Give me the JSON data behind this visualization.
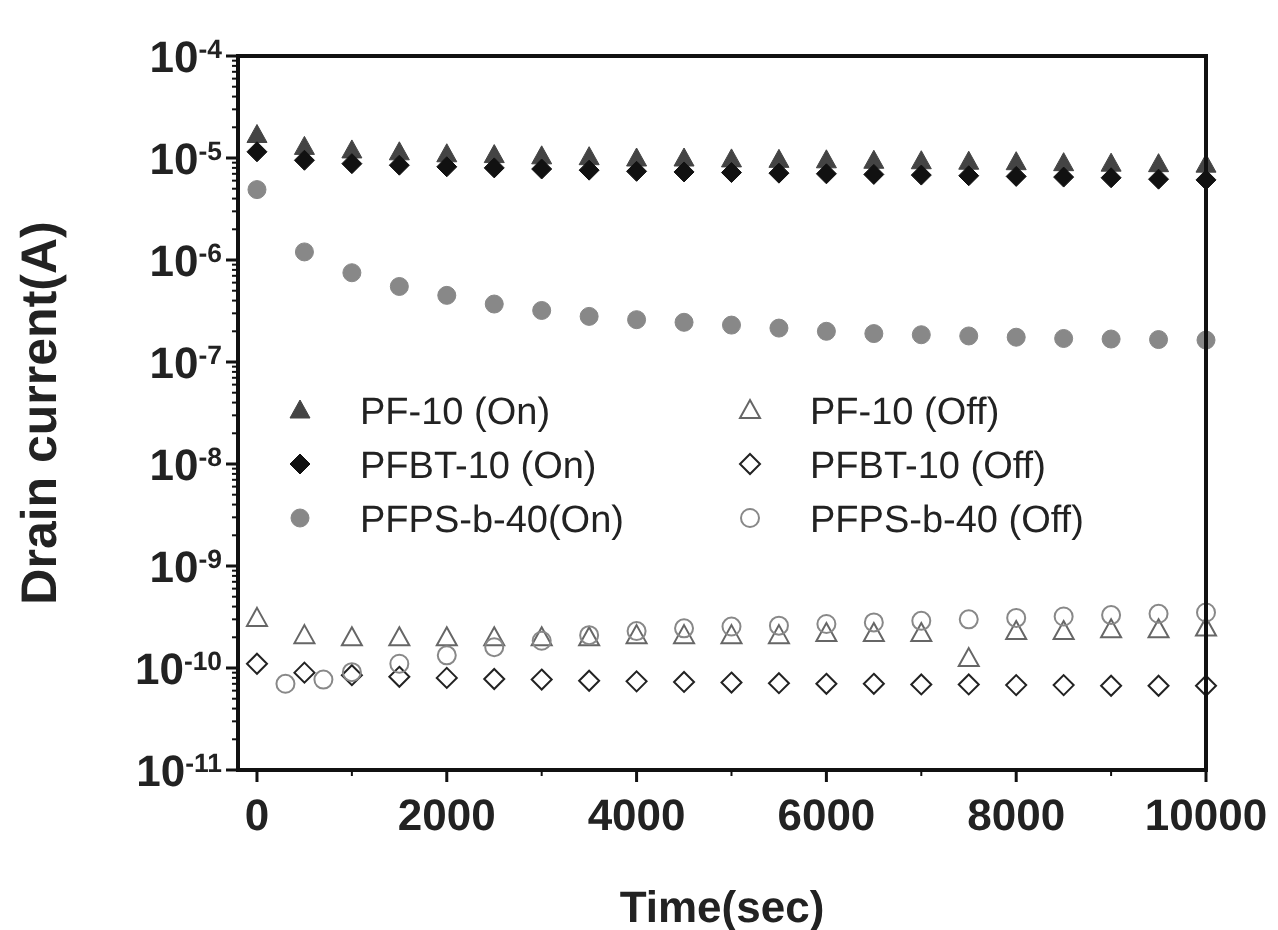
{
  "chart_data": {
    "type": "scatter",
    "xlabel": "Time(sec)",
    "ylabel": "Drain current(A)",
    "log": "y",
    "xlim": [
      -200,
      10000
    ],
    "ylim": [
      1e-11,
      0.0001
    ],
    "xticks": [
      0,
      2000,
      4000,
      6000,
      8000,
      10000
    ],
    "yticks": [
      {
        "value": 1e-11,
        "label": "10$^{-11}$"
      },
      {
        "value": 1e-10,
        "label": "10$^{-10}$"
      },
      {
        "value": 1e-09,
        "label": "10$^{-9}$"
      },
      {
        "value": 1e-08,
        "label": "10$^{-8}$"
      },
      {
        "value": 1e-07,
        "label": "10$^{-7}$"
      },
      {
        "value": 1e-06,
        "label": "10$^{-6}$"
      },
      {
        "value": 1e-05,
        "label": "10$^{-5}$"
      },
      {
        "value": 0.0001,
        "label": "10$^{-4}$"
      }
    ],
    "legend": "left",
    "x": [
      0,
      500,
      1000,
      1500,
      2000,
      2500,
      3000,
      3500,
      4000,
      4500,
      5000,
      5500,
      6000,
      6500,
      7000,
      7500,
      8000,
      8500,
      9000,
      9500,
      10000
    ],
    "series": [
      {
        "name": "PF-10 (On)",
        "color": "#444444",
        "marker": "triangle",
        "values": [
          1.7e-05,
          1.3e-05,
          1.2e-05,
          1.15e-05,
          1.1e-05,
          1.08e-05,
          1.05e-05,
          1.03e-05,
          1e-05,
          1e-05,
          9.8e-06,
          9.7e-06,
          9.6e-06,
          9.5e-06,
          9.4e-06,
          9.3e-06,
          9.2e-06,
          9e-06,
          8.9e-06,
          8.8e-06,
          8.7e-06
        ]
      },
      {
        "name": "PFBT-10 (On)",
        "color": "#111111",
        "marker": "diamond",
        "values": [
          1.15e-05,
          9.5e-06,
          8.8e-06,
          8.5e-06,
          8.2e-06,
          8e-06,
          7.8e-06,
          7.6e-06,
          7.4e-06,
          7.3e-06,
          7.2e-06,
          7.1e-06,
          7e-06,
          6.9e-06,
          6.8e-06,
          6.7e-06,
          6.6e-06,
          6.5e-06,
          6.4e-06,
          6.2e-06,
          6.1e-06
        ]
      },
      {
        "name": "PFPS-b-40(On)",
        "color": "#888888",
        "marker": "circle",
        "values": [
          4.9e-06,
          1.2e-06,
          7.5e-07,
          5.5e-07,
          4.5e-07,
          3.7e-07,
          3.2e-07,
          2.8e-07,
          2.6e-07,
          2.45e-07,
          2.3e-07,
          2.15e-07,
          2e-07,
          1.9e-07,
          1.85e-07,
          1.8e-07,
          1.75e-07,
          1.7e-07,
          1.68e-07,
          1.66e-07,
          1.64e-07
        ]
      },
      {
        "name": "PF-10 (Off)",
        "color": "#666666",
        "marker": "triangle",
        "values": [
          3.1e-10,
          2.1e-10,
          2e-10,
          2e-10,
          2e-10,
          2e-10,
          2e-10,
          2e-10,
          2.1e-10,
          2.1e-10,
          2.1e-10,
          2.1e-10,
          2.2e-10,
          2.2e-10,
          2.2e-10,
          1.25e-10,
          2.3e-10,
          2.3e-10,
          2.4e-10,
          2.4e-10,
          2.5e-10
        ]
      },
      {
        "name": "PFBT-10 (Off)",
        "color": "#222222",
        "marker": "diamond",
        "values": [
          1.1e-10,
          9e-11,
          8.5e-11,
          8.2e-11,
          8e-11,
          7.8e-11,
          7.7e-11,
          7.5e-11,
          7.4e-11,
          7.3e-11,
          7.2e-11,
          7.1e-11,
          7e-11,
          7e-11,
          6.9e-11,
          6.9e-11,
          6.8e-11,
          6.8e-11,
          6.7e-11,
          6.7e-11,
          6.7e-11
        ]
      },
      {
        "name": "PFPS-b-40 (Off)",
        "color": "#888888",
        "marker": "circle",
        "x": [
          300,
          700,
          1000,
          1500,
          2000,
          2500,
          3000,
          3500,
          4000,
          4500,
          5000,
          5500,
          6000,
          6500,
          7000,
          7500,
          8000,
          8500,
          9000,
          9500,
          10000
        ],
        "values": [
          7e-11,
          7.7e-11,
          9.1e-11,
          1.1e-10,
          1.33e-10,
          1.6e-10,
          1.85e-10,
          2.1e-10,
          2.3e-10,
          2.45e-10,
          2.55e-10,
          2.6e-10,
          2.7e-10,
          2.8e-10,
          2.9e-10,
          3e-10,
          3.1e-10,
          3.2e-10,
          3.3e-10,
          3.4e-10,
          3.5e-10
        ]
      }
    ]
  }
}
